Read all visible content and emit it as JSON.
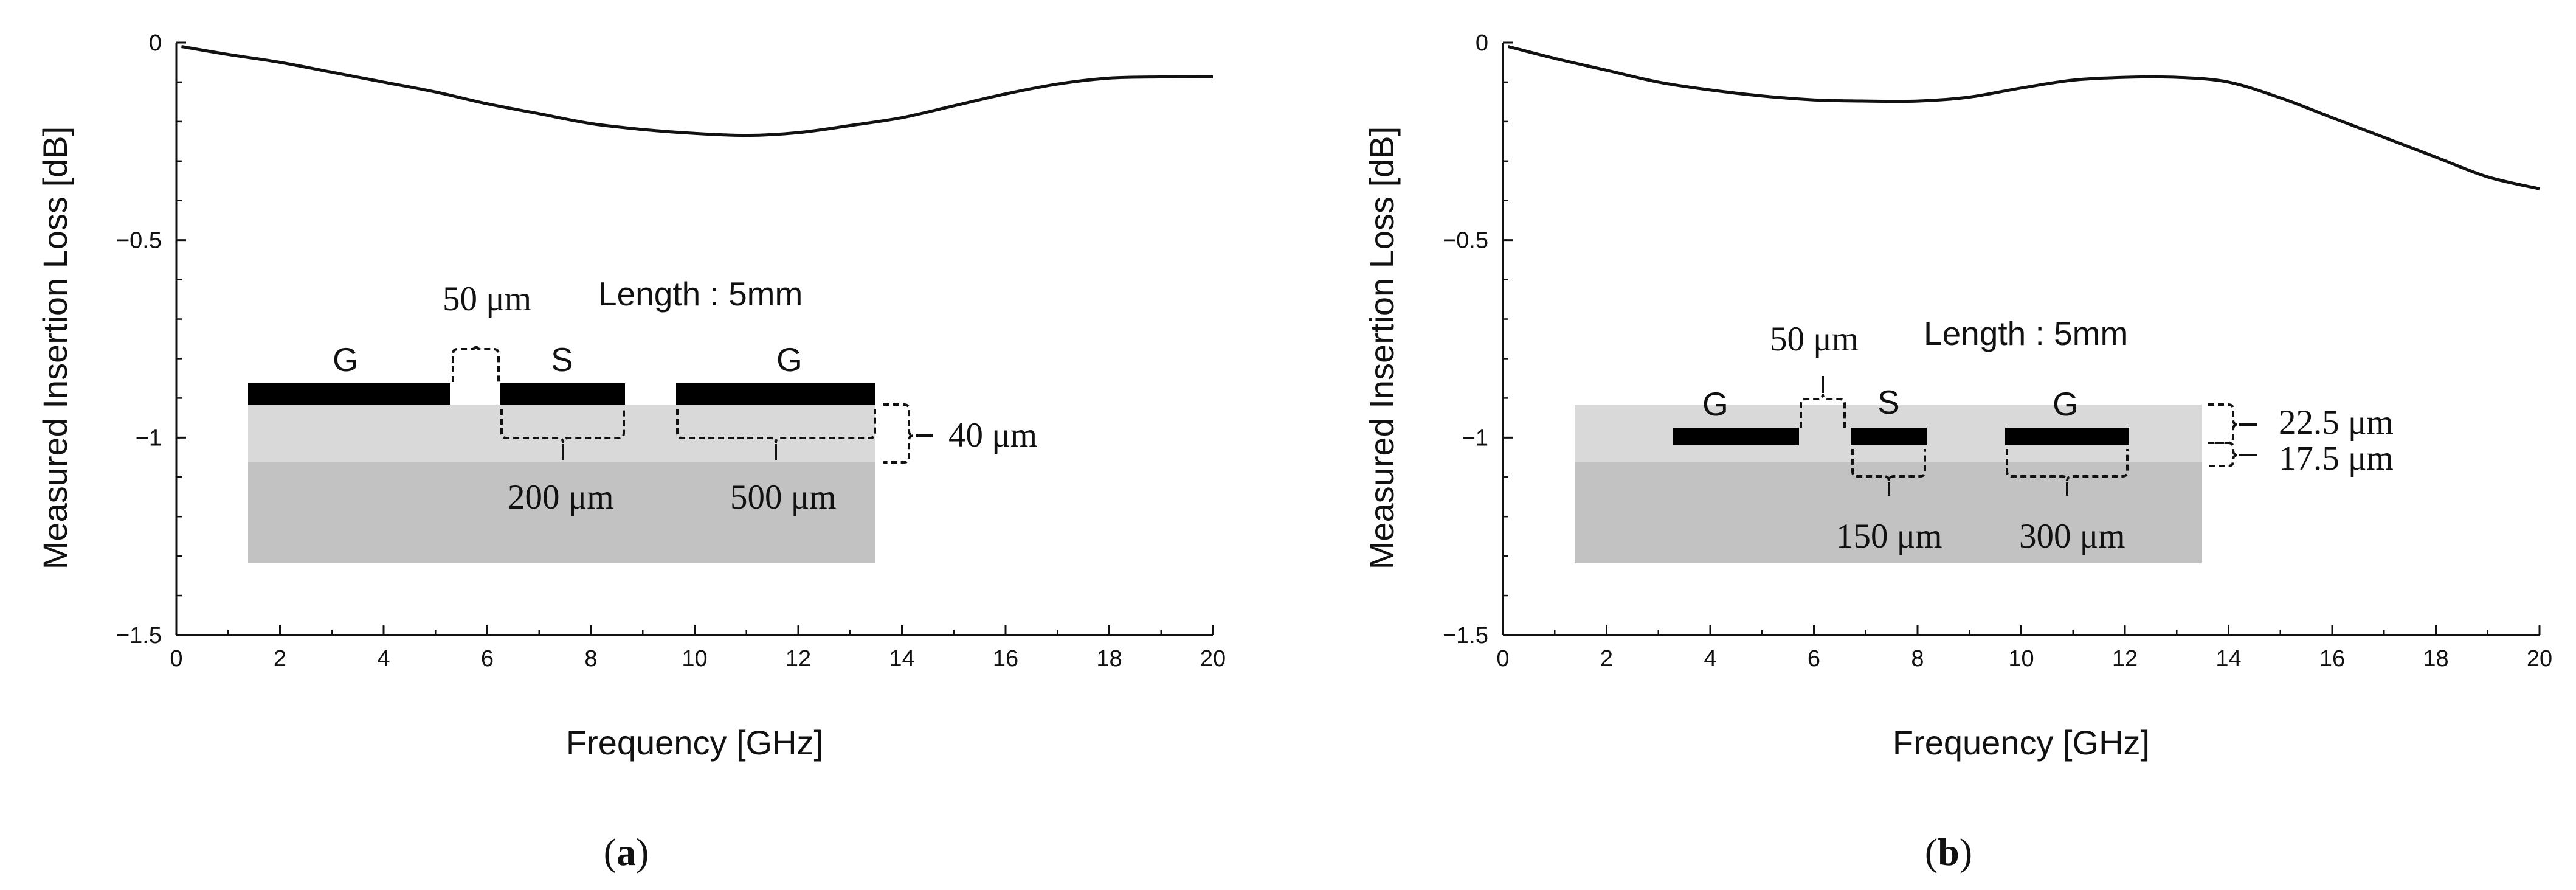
{
  "colors": {
    "ink": "#111111",
    "substrate_upper": "#d9d9d9",
    "substrate_lower": "#c2c2c2",
    "electrode": "#000000"
  },
  "chart_data": [
    {
      "panel": "a",
      "type": "line",
      "xlabel": "Frequency [GHz]",
      "ylabel": "Measured Insertion Loss [dB]",
      "xlim": [
        0,
        20
      ],
      "ylim": [
        -1.5,
        0
      ],
      "xticks": [
        0,
        2,
        4,
        6,
        8,
        10,
        12,
        14,
        16,
        18,
        20
      ],
      "yticks": [
        0,
        -0.5,
        -1,
        -1.5
      ],
      "xtick_labels": [
        "0",
        "2",
        "4",
        "6",
        "8",
        "10",
        "12",
        "14",
        "16",
        "18",
        "20"
      ],
      "ytick_labels": [
        "0",
        "−0.5",
        "−1",
        "−1.5"
      ],
      "x_minor_step": 1,
      "grid": false,
      "series": [
        {
          "name": "Measured insertion loss",
          "x": [
            0.1,
            1,
            2,
            3,
            4,
            5,
            6,
            7,
            8,
            9,
            10,
            11,
            12,
            13,
            14,
            15,
            16,
            17,
            18,
            19,
            20
          ],
          "y": [
            -0.01,
            -0.03,
            -0.05,
            -0.075,
            -0.1,
            -0.125,
            -0.155,
            -0.18,
            -0.205,
            -0.22,
            -0.23,
            -0.235,
            -0.228,
            -0.21,
            -0.19,
            -0.16,
            -0.13,
            -0.105,
            -0.09,
            -0.087,
            -0.087
          ]
        }
      ],
      "caption": "(a)",
      "inset": {
        "length_label": "Length : 5mm",
        "g_left_label": "G",
        "s_label": "S",
        "g_right_label": "G",
        "gap_label": "50 μm",
        "signal_width_label": "200 μm",
        "ground_width_label": "500 μm",
        "thickness_label": "40 μm"
      }
    },
    {
      "panel": "b",
      "type": "line",
      "xlabel": "Frequency [GHz]",
      "ylabel": "Measured Insertion Loss [dB]",
      "xlim": [
        0,
        20
      ],
      "ylim": [
        -1.5,
        0
      ],
      "xticks": [
        0,
        2,
        4,
        6,
        8,
        10,
        12,
        14,
        16,
        18,
        20
      ],
      "yticks": [
        0,
        -0.5,
        -1,
        -1.5
      ],
      "xtick_labels": [
        "0",
        "2",
        "4",
        "6",
        "8",
        "10",
        "12",
        "14",
        "16",
        "18",
        "20"
      ],
      "ytick_labels": [
        "0",
        "−0.5",
        "−1",
        "−1.5"
      ],
      "x_minor_step": 1,
      "grid": false,
      "series": [
        {
          "name": "Measured insertion loss",
          "x": [
            0.1,
            1,
            2,
            3,
            4,
            5,
            6,
            7,
            8,
            9,
            10,
            11,
            12,
            13,
            14,
            15,
            16,
            17,
            18,
            19,
            20
          ],
          "y": [
            -0.01,
            -0.04,
            -0.07,
            -0.1,
            -0.12,
            -0.135,
            -0.145,
            -0.148,
            -0.148,
            -0.138,
            -0.115,
            -0.095,
            -0.088,
            -0.088,
            -0.1,
            -0.14,
            -0.19,
            -0.24,
            -0.29,
            -0.34,
            -0.37
          ]
        }
      ],
      "caption": "(b)",
      "inset": {
        "length_label": "Length : 5mm",
        "g_left_label": "G",
        "s_label": "S",
        "g_right_label": "G",
        "gap_label": "50 μm",
        "signal_width_label": "150 μm",
        "ground_width_label": "300 μm",
        "upper_thickness_label": "22.5 μm",
        "lower_thickness_label": "17.5 μm"
      }
    }
  ]
}
